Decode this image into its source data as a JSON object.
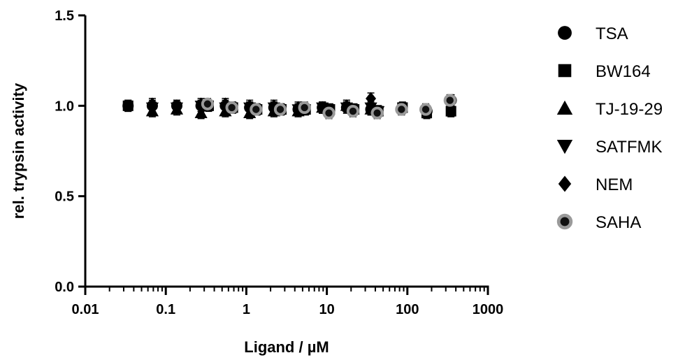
{
  "chart_data": {
    "type": "scatter",
    "xlabel": "Ligand / µM",
    "ylabel": "rel. trypsin activity",
    "xscale": "log",
    "xlim": [
      0.01,
      1000
    ],
    "ylim": [
      0.0,
      1.5
    ],
    "xticks": [
      {
        "value": 0.01,
        "label": "0.01"
      },
      {
        "value": 0.1,
        "label": "0.1"
      },
      {
        "value": 1,
        "label": "1"
      },
      {
        "value": 10,
        "label": "10"
      },
      {
        "value": 100,
        "label": "100"
      },
      {
        "value": 1000,
        "label": "1000"
      }
    ],
    "yticks": [
      {
        "value": 0.0,
        "label": "0.0"
      },
      {
        "value": 0.5,
        "label": "0.5"
      },
      {
        "value": 1.0,
        "label": "1.0"
      },
      {
        "value": 1.5,
        "label": "1.5"
      }
    ],
    "grid": false,
    "legend_position": "right",
    "series": [
      {
        "name": "TSA",
        "marker": "circle",
        "color": "#000000",
        "points": [
          [
            0.034,
            1.0
          ],
          [
            0.068,
            1.0
          ],
          [
            0.137,
            1.0
          ],
          [
            0.274,
            1.0
          ],
          [
            0.549,
            1.0
          ],
          [
            1.1,
            0.99
          ],
          [
            2.2,
            0.99
          ],
          [
            4.4,
            0.98
          ],
          [
            8.8,
            0.99
          ],
          [
            17.6,
            0.99
          ],
          [
            35.2,
            0.98
          ],
          [
            175,
            0.97
          ],
          [
            350,
            1.03
          ]
        ]
      },
      {
        "name": "BW164",
        "marker": "square",
        "color": "#000000",
        "points": [
          [
            0.034,
            1.0
          ],
          [
            0.34,
            1.0
          ],
          [
            0.68,
            0.99
          ],
          [
            1.36,
            0.98
          ],
          [
            2.72,
            0.98
          ],
          [
            5.44,
            0.98
          ],
          [
            10.9,
            0.98
          ],
          [
            21.8,
            0.98
          ],
          [
            43.5,
            0.97
          ],
          [
            87,
            0.99
          ],
          [
            174,
            0.96
          ],
          [
            348,
            0.97
          ]
        ]
      },
      {
        "name": "TJ-19-29",
        "marker": "triangle-up",
        "color": "#000000",
        "points": [
          [
            0.068,
            0.97
          ],
          [
            0.137,
            0.98
          ],
          [
            0.274,
            0.96
          ],
          [
            0.549,
            0.97
          ],
          [
            1.1,
            0.96
          ],
          [
            2.2,
            0.97
          ],
          [
            4.4,
            0.97
          ],
          [
            8.8,
            0.99
          ],
          [
            17.6,
            1.0
          ],
          [
            35.2,
            0.98
          ]
        ]
      },
      {
        "name": "SATFMK",
        "marker": "triangle-down",
        "color": "#000000",
        "points": [
          [
            0.068,
            0.99
          ],
          [
            0.137,
            0.99
          ],
          [
            0.274,
            1.0
          ],
          [
            0.549,
            0.99
          ],
          [
            1.1,
            0.99
          ],
          [
            2.2,
            0.99
          ],
          [
            4.4,
            0.98
          ],
          [
            8.8,
            0.99
          ],
          [
            17.6,
            0.99
          ],
          [
            35.2,
            0.99
          ],
          [
            43.5,
            0.97
          ]
        ]
      },
      {
        "name": "NEM",
        "marker": "diamond",
        "color": "#000000",
        "points": [
          [
            0.068,
            1.01
          ],
          [
            0.137,
            1.0
          ],
          [
            0.274,
            1.01
          ],
          [
            0.549,
            1.01
          ],
          [
            1.1,
            1.0
          ],
          [
            2.2,
            1.0
          ],
          [
            4.4,
            0.99
          ],
          [
            8.8,
            0.99
          ],
          [
            17.6,
            1.0
          ],
          [
            35.2,
            1.04
          ]
        ]
      },
      {
        "name": "SAHA",
        "marker": "circle-gray",
        "color": "#9a9a9a",
        "points": [
          [
            0.33,
            1.01
          ],
          [
            0.66,
            0.99
          ],
          [
            1.32,
            0.98
          ],
          [
            2.64,
            0.98
          ],
          [
            5.28,
            0.99
          ],
          [
            10.6,
            0.96
          ],
          [
            21.1,
            0.97
          ],
          [
            42.2,
            0.96
          ],
          [
            84.5,
            0.98
          ],
          [
            169,
            0.98
          ],
          [
            338,
            1.03
          ]
        ]
      }
    ]
  }
}
